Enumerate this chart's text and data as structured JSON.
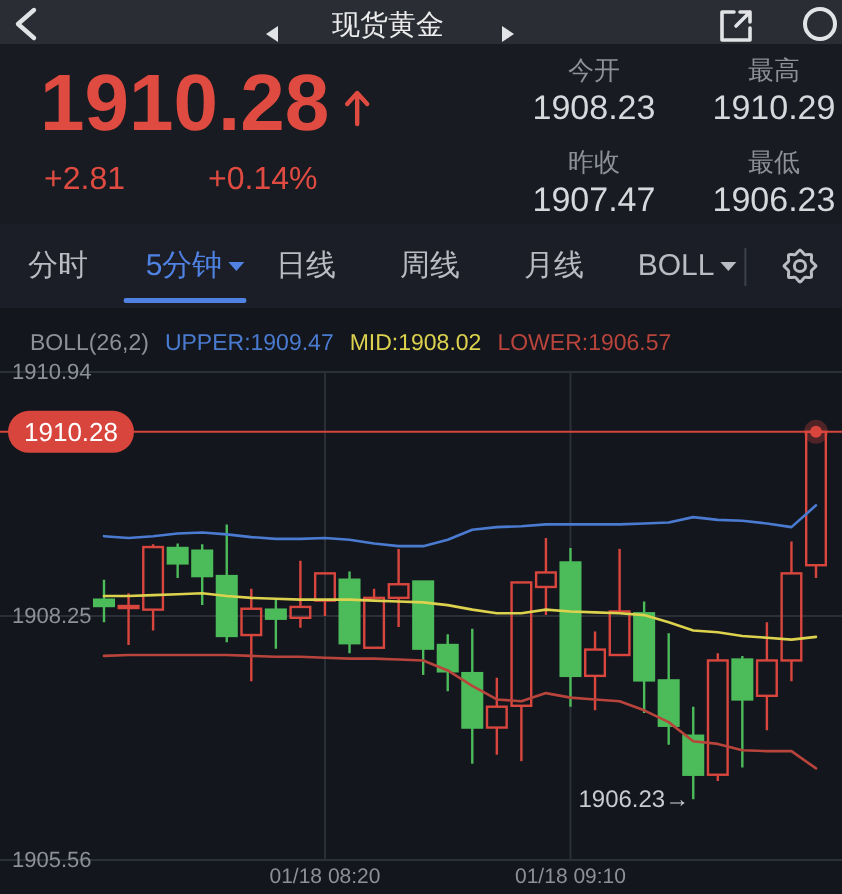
{
  "chart_data": {
    "type": "candlestick",
    "title": "现货黄金",
    "subtitle": "1910.28",
    "categories": [
      null,
      null,
      null,
      null,
      null,
      null,
      null,
      null,
      null,
      "01/18 08:20",
      null,
      null,
      null,
      null,
      null,
      null,
      null,
      null,
      null,
      "01/18 09:10",
      null,
      null,
      null,
      null,
      null,
      null,
      null,
      null,
      null,
      null
    ],
    "ohlc": [
      [
        1908.43,
        1908.65,
        1908.18,
        1908.36
      ],
      [
        1908.34,
        1908.5,
        1907.93,
        1908.36
      ],
      [
        1908.32,
        1909.04,
        1908.09,
        1909.01
      ],
      [
        1909.0,
        1909.05,
        1908.67,
        1908.83
      ],
      [
        1908.97,
        1909.04,
        1908.37,
        1908.69
      ],
      [
        1908.69,
        1909.26,
        1907.96,
        1908.03
      ],
      [
        1908.04,
        1908.55,
        1907.53,
        1908.33
      ],
      [
        1908.32,
        1908.43,
        1907.89,
        1908.22
      ],
      [
        1908.23,
        1908.86,
        1908.12,
        1908.35
      ],
      [
        1908.42,
        1908.73,
        1908.25,
        1908.72
      ],
      [
        1908.65,
        1908.74,
        1907.84,
        1907.95
      ],
      [
        1907.9,
        1908.55,
        1907.9,
        1908.45
      ],
      [
        1908.45,
        1908.99,
        1908.13,
        1908.6
      ],
      [
        1908.63,
        1908.63,
        1907.6,
        1907.89
      ],
      [
        1907.93,
        1908.05,
        1907.42,
        1907.64
      ],
      [
        1907.62,
        1908.11,
        1906.62,
        1907.02
      ],
      [
        1907.02,
        1907.57,
        1906.72,
        1907.25
      ],
      [
        1907.26,
        1908.62,
        1906.65,
        1908.62
      ],
      [
        1908.57,
        1909.11,
        1908.26,
        1908.73
      ],
      [
        1908.84,
        1909.0,
        1907.25,
        1907.59
      ],
      [
        1907.59,
        1908.08,
        1907.21,
        1907.88
      ],
      [
        1907.82,
        1908.99,
        1907.82,
        1908.3
      ],
      [
        1908.28,
        1908.41,
        1907.18,
        1907.54
      ],
      [
        1907.54,
        1908.06,
        1906.83,
        1907.04
      ],
      [
        1906.93,
        1907.25,
        1906.23,
        1906.5
      ],
      [
        1906.5,
        1907.84,
        1906.43,
        1907.76
      ],
      [
        1907.77,
        1907.81,
        1906.58,
        1907.33
      ],
      [
        1907.37,
        1908.18,
        1906.99,
        1907.76
      ],
      [
        1907.76,
        1909.07,
        1907.53,
        1908.72
      ],
      [
        1908.81,
        1910.29,
        1908.67,
        1910.28
      ]
    ],
    "colors": [
      "#4cbb5a",
      "#d9463e",
      "#d9463e",
      "#4cbb5a",
      "#4cbb5a",
      "#4cbb5a",
      "#d9463e",
      "#4cbb5a",
      "#d9463e",
      "#d9463e",
      "#4cbb5a",
      "#d9463e",
      "#d9463e",
      "#4cbb5a",
      "#4cbb5a",
      "#4cbb5a",
      "#d9463e",
      "#d9463e",
      "#d9463e",
      "#4cbb5a",
      "#d9463e",
      "#d9463e",
      "#4cbb5a",
      "#4cbb5a",
      "#4cbb5a",
      "#d9463e",
      "#4cbb5a",
      "#d9463e",
      "#d9463e",
      "#d9463e"
    ],
    "series": [
      {
        "name": "UPPER:1909.47",
        "type": "line",
        "color": "#4a7bd0",
        "values": [
          1909.13,
          1909.11,
          1909.13,
          1909.16,
          1909.17,
          1909.15,
          1909.12,
          1909.1,
          1909.1,
          1909.11,
          1909.09,
          1909.05,
          1909.02,
          1909.02,
          1909.09,
          1909.2,
          1909.23,
          1909.24,
          1909.26,
          1909.26,
          1909.26,
          1909.26,
          1909.27,
          1909.28,
          1909.34,
          1909.31,
          1909.3,
          1909.27,
          1909.23,
          1909.47
        ]
      },
      {
        "name": "MID:1908.02",
        "type": "line",
        "color": "#dcd24e",
        "values": [
          1908.47,
          1908.47,
          1908.48,
          1908.49,
          1908.5,
          1908.47,
          1908.45,
          1908.44,
          1908.43,
          1908.43,
          1908.43,
          1908.42,
          1908.41,
          1908.4,
          1908.37,
          1908.32,
          1908.28,
          1908.28,
          1908.32,
          1908.3,
          1908.29,
          1908.28,
          1908.26,
          1908.18,
          1908.09,
          1908.07,
          1908.03,
          1908.01,
          1907.99,
          1908.02
        ]
      },
      {
        "name": "LOWER:1906.57",
        "type": "line",
        "color": "#b8443c",
        "values": [
          1907.81,
          1907.82,
          1907.82,
          1907.82,
          1907.82,
          1907.82,
          1907.81,
          1907.8,
          1907.8,
          1907.79,
          1907.78,
          1907.78,
          1907.77,
          1907.76,
          1907.65,
          1907.48,
          1907.33,
          1907.31,
          1907.4,
          1907.35,
          1907.33,
          1907.31,
          1907.21,
          1907.08,
          1906.87,
          1906.84,
          1906.77,
          1906.76,
          1906.76,
          1906.57
        ]
      }
    ],
    "ylim": [
      1905.56,
      1910.94
    ],
    "yticks": [
      1905.56,
      1908.25,
      1910.94
    ],
    "grid": true,
    "legend": "top left",
    "legend_title": "BOLL(26,2)",
    "ref_lines": [
      {
        "axis": "y",
        "value": 1910.28,
        "label": "1910.28",
        "color": "#d8453d"
      }
    ],
    "annotations": [
      "+2.81",
      "+0.14%",
      "今开",
      "1908.23",
      "最高",
      "1910.29",
      "昨收",
      "1907.47",
      "最低",
      "1906.23",
      "分时",
      "5分钟",
      "日线",
      "周线",
      "月线",
      "BOLL",
      "1906.23→"
    ]
  }
}
